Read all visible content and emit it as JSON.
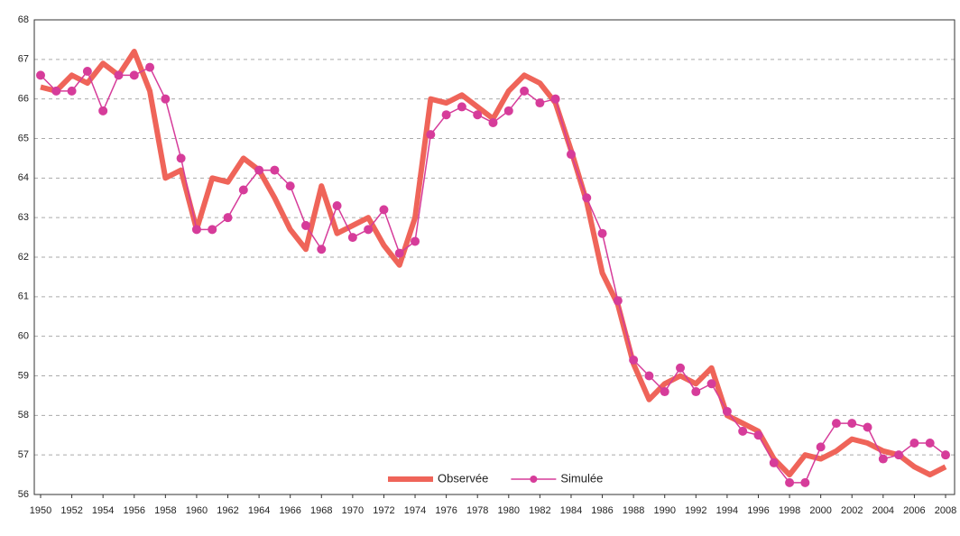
{
  "chart_data": {
    "type": "line",
    "x": [
      1950,
      1951,
      1952,
      1953,
      1954,
      1955,
      1956,
      1957,
      1958,
      1959,
      1960,
      1961,
      1962,
      1963,
      1964,
      1965,
      1966,
      1967,
      1968,
      1969,
      1970,
      1971,
      1972,
      1973,
      1974,
      1975,
      1976,
      1977,
      1978,
      1979,
      1980,
      1981,
      1982,
      1983,
      1984,
      1985,
      1986,
      1987,
      1988,
      1989,
      1990,
      1991,
      1992,
      1993,
      1994,
      1995,
      1996,
      1997,
      1998,
      1999,
      2000,
      2001,
      2002,
      2003,
      2004,
      2005,
      2006,
      2007,
      2008
    ],
    "series": [
      {
        "name": "Observée",
        "color": "#ef6459",
        "values": [
          66.3,
          66.2,
          66.6,
          66.4,
          66.9,
          66.6,
          67.2,
          66.2,
          64.0,
          64.2,
          62.7,
          64.0,
          63.9,
          64.5,
          64.2,
          63.5,
          62.7,
          62.2,
          63.8,
          62.6,
          62.8,
          63.0,
          62.3,
          61.8,
          63.0,
          66.0,
          65.9,
          66.1,
          65.8,
          65.5,
          66.2,
          66.6,
          66.4,
          65.9,
          64.7,
          63.4,
          61.6,
          60.8,
          59.3,
          58.4,
          58.8,
          59.0,
          58.8,
          59.2,
          58.0,
          57.8,
          57.6,
          56.9,
          56.5,
          57.0,
          56.9,
          57.1,
          57.4,
          57.3,
          57.1,
          57.0,
          56.7,
          56.5,
          56.7
        ]
      },
      {
        "name": "Simulée",
        "color": "#d63c9a",
        "values": [
          66.6,
          66.2,
          66.2,
          66.7,
          65.7,
          66.6,
          66.6,
          66.8,
          66.0,
          64.5,
          62.7,
          62.7,
          63.0,
          63.7,
          64.2,
          64.2,
          63.8,
          62.8,
          62.2,
          63.3,
          62.5,
          62.7,
          63.2,
          62.1,
          62.4,
          65.1,
          65.6,
          65.8,
          65.6,
          65.4,
          65.7,
          66.2,
          65.9,
          66.0,
          64.6,
          63.5,
          62.6,
          60.9,
          59.4,
          59.0,
          58.6,
          59.2,
          58.6,
          58.8,
          58.1,
          57.6,
          57.5,
          56.8,
          56.3,
          56.3,
          57.2,
          57.8,
          57.8,
          57.7,
          56.9,
          57.0,
          57.3,
          57.3,
          57.0
        ]
      }
    ],
    "xlim": [
      1950,
      2008
    ],
    "xticks": [
      1950,
      1952,
      1954,
      1956,
      1958,
      1960,
      1962,
      1964,
      1966,
      1968,
      1970,
      1972,
      1974,
      1976,
      1978,
      1980,
      1982,
      1984,
      1986,
      1988,
      1990,
      1992,
      1994,
      1996,
      1998,
      2000,
      2002,
      2004,
      2006,
      2008
    ],
    "ylim": [
      56,
      68
    ],
    "yticks": [
      56,
      57,
      58,
      59,
      60,
      61,
      62,
      63,
      64,
      65,
      66,
      67,
      68
    ],
    "grid": true,
    "legend": "bottom"
  }
}
